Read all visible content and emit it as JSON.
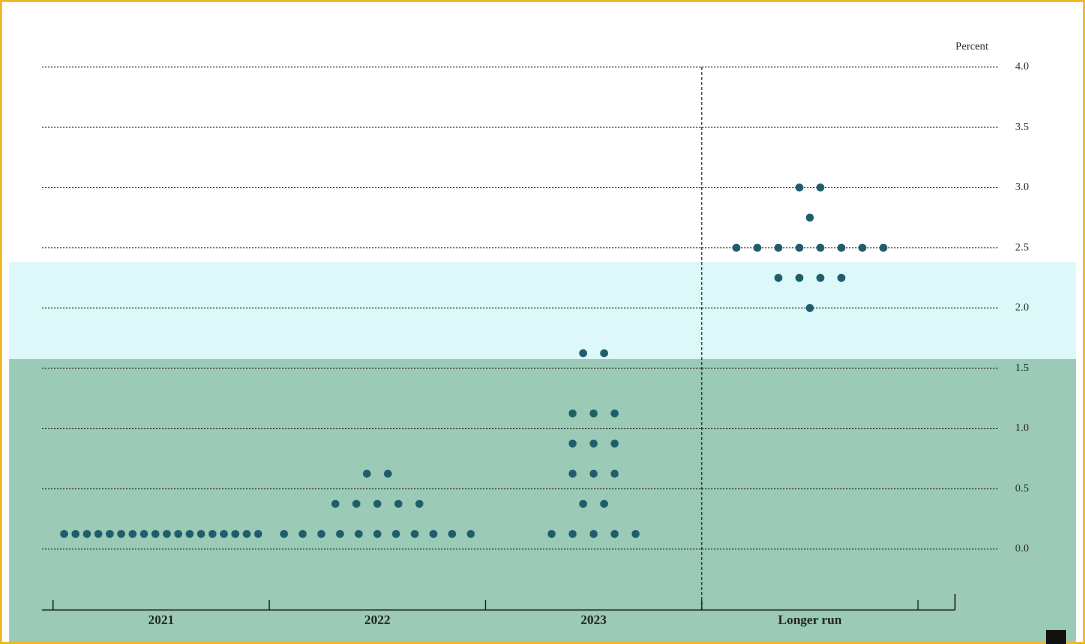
{
  "chart_data": {
    "type": "dot",
    "y_label": "Percent",
    "categories": [
      "2021",
      "2022",
      "2023",
      "Longer run"
    ],
    "dots": [
      [
        {
          "y": 0.125,
          "count": 18
        }
      ],
      [
        {
          "y": 0.125,
          "count": 11
        },
        {
          "y": 0.375,
          "count": 5
        },
        {
          "y": 0.625,
          "count": 2
        }
      ],
      [
        {
          "y": 0.125,
          "count": 5
        },
        {
          "y": 0.375,
          "count": 2
        },
        {
          "y": 0.625,
          "count": 3
        },
        {
          "y": 0.875,
          "count": 3
        },
        {
          "y": 1.125,
          "count": 3
        },
        {
          "y": 1.625,
          "count": 2
        }
      ],
      [
        {
          "y": 2.0,
          "count": 1
        },
        {
          "y": 2.25,
          "count": 4
        },
        {
          "y": 2.5,
          "count": 8
        },
        {
          "y": 2.75,
          "count": 1
        },
        {
          "y": 3.0,
          "count": 2
        }
      ]
    ],
    "color": "#1f5d6b",
    "ylim": [
      0,
      4
    ],
    "yticks": [
      {
        "value": 0,
        "label": "0.0"
      },
      {
        "value": 0.5,
        "label": "0.5"
      },
      {
        "value": 1,
        "label": "1.0"
      },
      {
        "value": 1.5,
        "label": "1.5"
      },
      {
        "value": 2,
        "label": "2.0"
      },
      {
        "value": 2.5,
        "label": "2.5"
      },
      {
        "value": 3,
        "label": "3.0"
      },
      {
        "value": 3.5,
        "label": "3.5"
      },
      {
        "value": 4,
        "label": "4.0"
      }
    ],
    "grid": true
  }
}
